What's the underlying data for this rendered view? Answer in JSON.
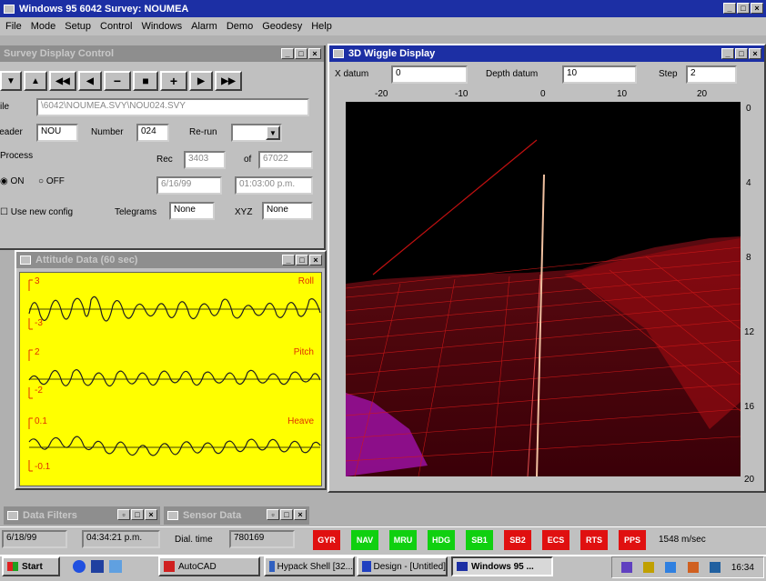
{
  "app": {
    "title": "Windows 95 6042   Survey:  NOUMEA"
  },
  "menu": [
    "File",
    "Mode",
    "Setup",
    "Control",
    "Windows",
    "Alarm",
    "Demo",
    "Geodesy",
    "Help"
  ],
  "survey": {
    "title": "Survey Display Control",
    "file": "\\6042\\NOUMEA.SVY\\NOU024.SVY",
    "header_label": "Header",
    "header_value": "NOU",
    "number_label": "Number",
    "number_value": "024",
    "rerun_label": "Re-run",
    "process_label": "Process",
    "on_label": "ON",
    "off_label": "OFF",
    "rec_label": "Rec",
    "rec_value": "3403",
    "of_label": "of",
    "of_value": "67022",
    "date": "6/16/99",
    "time": "01:03:00 p.m.",
    "use_new_config": "Use new config",
    "telegrams_label": "Telegrams",
    "telegrams_value": "None",
    "xyz_label": "XYZ",
    "xyz_value": "None"
  },
  "attitude": {
    "title": "Attitude Data (60 sec)",
    "roll_label": "Roll",
    "roll_max": "3",
    "roll_min": "-3",
    "pitch_label": "Pitch",
    "pitch_max": "2",
    "pitch_min": "-2",
    "heave_label": "Heave",
    "heave_max": "0.1",
    "heave_min": "-0.1"
  },
  "wiggle": {
    "title": "3D Wiggle Display",
    "xdatum_label": "X datum",
    "xdatum_value": "0",
    "depth_label": "Depth datum",
    "depth_value": "10",
    "step_label": "Step",
    "step_value": "2",
    "top_ticks": [
      "-20",
      "-10",
      "0",
      "10",
      "20"
    ],
    "right_ticks": [
      "0",
      "4",
      "8",
      "12",
      "16",
      "20"
    ]
  },
  "minimized": {
    "data_filters": "Data Filters",
    "sensor_data": "Sensor Data"
  },
  "status": {
    "date": "6/18/99",
    "time": "04:34:21 p.m.",
    "dialtime_label": "Dial. time",
    "dialtime_value": "780169",
    "speed": "1548 m/sec",
    "leds": [
      {
        "label": "GYR",
        "color": "#e01010"
      },
      {
        "label": "NAV",
        "color": "#10d010"
      },
      {
        "label": "MRU",
        "color": "#10d010"
      },
      {
        "label": "HDG",
        "color": "#10d010"
      },
      {
        "label": "SB1",
        "color": "#10d010"
      },
      {
        "label": "SB2",
        "color": "#e01010"
      },
      {
        "label": "ECS",
        "color": "#e01010"
      },
      {
        "label": "RTS",
        "color": "#e01010"
      },
      {
        "label": "PPS",
        "color": "#e01010"
      }
    ]
  },
  "taskbar": {
    "start": "Start",
    "tasks": [
      "AutoCAD",
      "Hypack Shell [32...",
      "Design - [Untitled]",
      "Windows 95 ..."
    ],
    "clock": "16:34"
  }
}
